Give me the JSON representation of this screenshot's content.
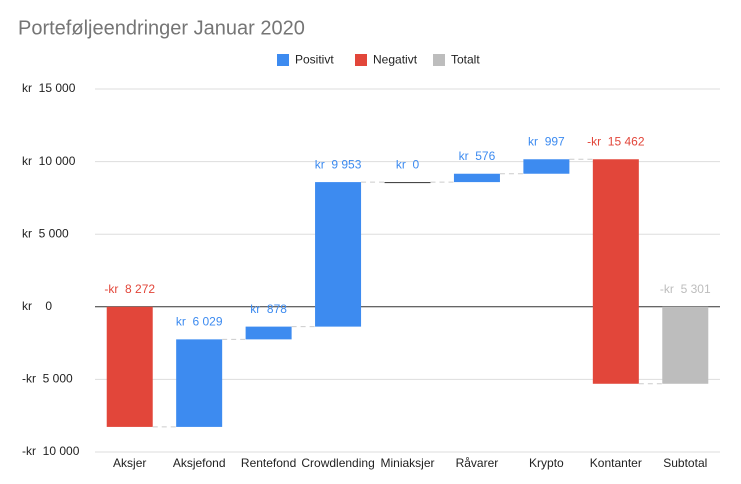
{
  "chart_data": {
    "type": "waterfall",
    "title": "Porteføljeendringer Januar 2020",
    "series": [
      {
        "name": "Positivt",
        "color": "#3d8bf0"
      },
      {
        "name": "Negativt",
        "color": "#e2463a"
      },
      {
        "name": "Totalt",
        "color": "#bdbdbd"
      }
    ],
    "categories": [
      "Aksjer",
      "Aksjefond",
      "Rentefond",
      "Crowdlending",
      "Miniaksjer",
      "Råvarer",
      "Krypto",
      "Kontanter",
      "Subtotal"
    ],
    "values": [
      -8272,
      6029,
      878,
      9953,
      0,
      576,
      997,
      -15462,
      -5301
    ],
    "value_labels": [
      "-kr  8 272",
      "kr  6 029",
      "kr  878",
      "kr  9 953",
      "kr  0",
      "kr  576",
      "kr  997",
      "-kr  15 462",
      "-kr  5 301"
    ],
    "is_total": [
      false,
      false,
      false,
      false,
      false,
      false,
      false,
      false,
      true
    ],
    "ylim": [
      -10000,
      15000
    ],
    "yticks": [
      {
        "value": -10000,
        "label": "-kr  10 000"
      },
      {
        "value": -5000,
        "label": "-kr  5 000"
      },
      {
        "value": 0,
        "label": "kr    0"
      },
      {
        "value": 5000,
        "label": "kr  5 000"
      },
      {
        "value": 10000,
        "label": "kr  10 000"
      },
      {
        "value": 15000,
        "label": "kr  15 000"
      }
    ],
    "grid": true
  }
}
